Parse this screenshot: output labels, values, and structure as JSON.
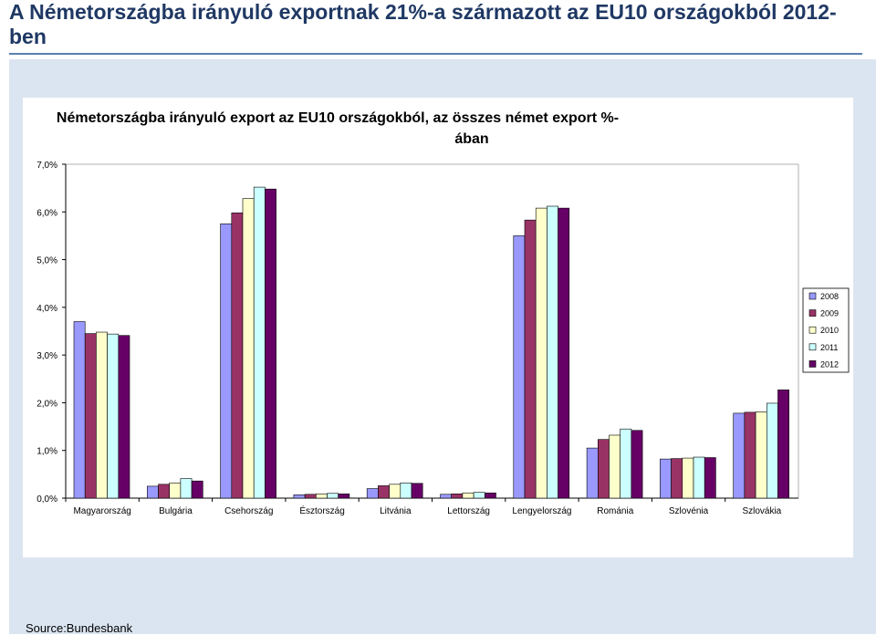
{
  "slide": {
    "title": "A Németországba irányuló exportnak 21%-a származott az EU10 országokból 2012-ben",
    "source": "Source:Bundesbank"
  },
  "colors": {
    "title": "#1f3864",
    "panel": "#dbe5f1",
    "series": [
      "#9999ff",
      "#993366",
      "#ffffcc",
      "#ccffff",
      "#660066"
    ]
  },
  "chart_data": {
    "type": "bar",
    "title": "Németországba irányuló export az EU10 országokból, az összes német export %-ában",
    "categories": [
      "Magyarország",
      "Bulgária",
      "Csehország",
      "Észtország",
      "Litvánia",
      "Lettország",
      "Lengyelország",
      "Románia",
      "Szlovénia",
      "Szlovákia"
    ],
    "series": [
      {
        "name": "2008",
        "values": [
          3.7,
          0.25,
          5.75,
          0.07,
          0.2,
          0.08,
          5.5,
          1.05,
          0.82,
          1.78
        ]
      },
      {
        "name": "2009",
        "values": [
          3.45,
          0.29,
          5.98,
          0.08,
          0.26,
          0.09,
          5.83,
          1.23,
          0.83,
          1.8
        ]
      },
      {
        "name": "2010",
        "values": [
          3.48,
          0.32,
          6.28,
          0.09,
          0.29,
          0.11,
          6.08,
          1.32,
          0.84,
          1.81
        ]
      },
      {
        "name": "2011",
        "values": [
          3.44,
          0.41,
          6.52,
          0.1,
          0.32,
          0.12,
          6.12,
          1.45,
          0.86,
          1.99
        ]
      },
      {
        "name": "2012",
        "values": [
          3.41,
          0.36,
          6.48,
          0.09,
          0.31,
          0.11,
          6.08,
          1.42,
          0.85,
          2.27
        ]
      }
    ],
    "ytick_labels": [
      "0,0%",
      "1,0%",
      "2,0%",
      "3,0%",
      "4,0%",
      "5,0%",
      "6,0%",
      "7,0%"
    ],
    "ylim": [
      0,
      7
    ],
    "grid": false,
    "legend_position": "right"
  }
}
